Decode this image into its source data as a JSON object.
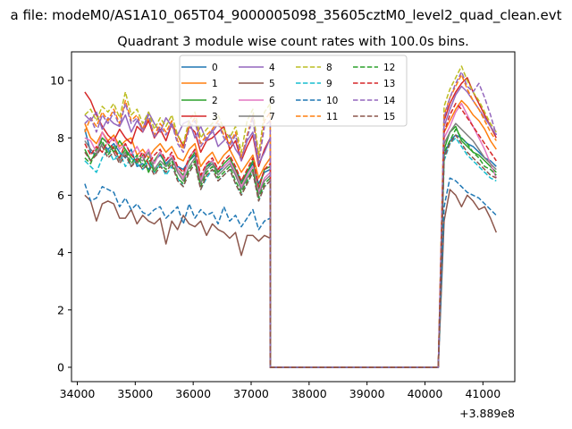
{
  "chart_data": {
    "type": "line",
    "suptitle": "a file: modeM0/AS1A10_065T04_9000005098_35605cztM0_level2_quad_clean.evt",
    "title": "Quadrant 3 module wise count rates with 100.0s bins.",
    "xlabel": "",
    "ylabel": "",
    "x_offset_label": "+3.889e8",
    "xlim": [
      33900,
      41550
    ],
    "ylim": [
      -0.5,
      11
    ],
    "x_ticks": [
      34000,
      35000,
      36000,
      37000,
      38000,
      39000,
      40000,
      41000
    ],
    "x_tick_labels": [
      "34000",
      "35000",
      "36000",
      "37000",
      "38000",
      "39000",
      "40000",
      "41000"
    ],
    "y_ticks": [
      0,
      2,
      4,
      6,
      8,
      10
    ],
    "y_tick_labels": [
      "0",
      "2",
      "4",
      "6",
      "8",
      "10"
    ],
    "legend": {
      "position": "top-center",
      "columns": 4
    },
    "segments": [
      {
        "x_start": 34130,
        "x_step": 100,
        "count": 33
      },
      {
        "x_start": 37330,
        "x_step": 100,
        "count": 30,
        "zero": true
      },
      {
        "x_start": 40230,
        "x_step": 100,
        "count": 11
      }
    ],
    "series": [
      {
        "name": "0",
        "color": "#1f77b4",
        "dashed": false,
        "seg1": [
          8.3,
          7.5,
          7.4,
          7.8,
          7.6,
          7.8,
          7.5,
          7.3,
          7.6,
          7.0,
          7.1,
          6.9,
          7.2,
          7.4,
          7.1,
          7.3,
          7.0,
          6.9,
          7.2,
          7.4,
          6.6,
          7.0,
          7.1,
          6.8,
          7.0,
          7.2,
          6.9,
          6.5,
          6.8,
          7.1,
          6.4,
          6.8,
          6.9
        ],
        "seg3": [
          0.0,
          7.4,
          7.9,
          8.1,
          8.0,
          7.8,
          7.7,
          7.5,
          7.3,
          7.2,
          7.0
        ]
      },
      {
        "name": "1",
        "color": "#ff7f0e",
        "dashed": false,
        "seg1": [
          8.5,
          8.0,
          7.8,
          8.2,
          7.9,
          8.1,
          7.7,
          7.9,
          8.0,
          7.4,
          7.6,
          7.3,
          7.6,
          7.8,
          7.5,
          7.7,
          7.3,
          7.2,
          7.6,
          7.8,
          7.0,
          7.3,
          7.5,
          7.1,
          7.4,
          7.6,
          7.2,
          6.8,
          7.1,
          7.4,
          6.6,
          7.0,
          7.3
        ],
        "seg3": [
          0.0,
          8.2,
          8.6,
          9.0,
          9.3,
          9.1,
          8.8,
          8.6,
          8.3,
          7.9,
          7.6
        ]
      },
      {
        "name": "2",
        "color": "#2ca02c",
        "dashed": false,
        "seg1": [
          7.6,
          7.2,
          7.5,
          8.0,
          7.8,
          7.5,
          7.9,
          7.6,
          7.3,
          7.1,
          7.4,
          6.8,
          7.2,
          7.5,
          7.0,
          7.3,
          6.9,
          6.7,
          7.2,
          7.5,
          6.6,
          7.0,
          7.2,
          6.8,
          7.1,
          7.3,
          6.9,
          6.4,
          6.8,
          7.2,
          6.2,
          6.9,
          7.0
        ],
        "seg3": [
          0.0,
          7.6,
          8.2,
          8.4,
          7.9,
          7.7,
          7.5,
          7.4,
          7.2,
          7.0,
          6.8
        ]
      },
      {
        "name": "3",
        "color": "#d62728",
        "dashed": false,
        "seg1": [
          9.6,
          9.3,
          8.8,
          8.4,
          8.1,
          7.9,
          8.3,
          8.0,
          7.8,
          8.4,
          8.2,
          8.6,
          8.0,
          8.3,
          7.9,
          8.5,
          8.1,
          7.7,
          8.4,
          8.2,
          7.5,
          7.9,
          8.0,
          8.2,
          8.4,
          7.6,
          7.9,
          7.2,
          7.7,
          8.1,
          7.0,
          7.6,
          8.0
        ],
        "seg3": [
          0.0,
          8.6,
          9.2,
          9.6,
          9.9,
          10.1,
          9.6,
          9.2,
          8.8,
          8.4,
          8.0
        ]
      },
      {
        "name": "4",
        "color": "#9467bd",
        "dashed": false,
        "seg1": [
          8.8,
          8.6,
          8.9,
          8.3,
          8.7,
          8.5,
          8.4,
          8.8,
          8.2,
          8.6,
          8.3,
          8.9,
          8.5,
          8.2,
          8.7,
          8.4,
          8.1,
          8.5,
          8.6,
          8.0,
          8.4,
          7.9,
          8.3,
          7.7,
          7.9,
          8.1,
          7.6,
          7.3,
          7.9,
          8.2,
          7.1,
          7.5,
          8.0
        ],
        "seg3": [
          0.0,
          8.4,
          9.0,
          9.5,
          9.8,
          9.6,
          9.3,
          9.0,
          8.7,
          8.4,
          8.1
        ]
      },
      {
        "name": "5",
        "color": "#8c564b",
        "dashed": false,
        "seg1": [
          6.0,
          5.8,
          5.1,
          5.7,
          5.8,
          5.7,
          5.2,
          5.2,
          5.5,
          5.0,
          5.3,
          5.1,
          5.0,
          5.2,
          4.3,
          5.1,
          4.8,
          5.3,
          5.0,
          4.9,
          5.1,
          4.6,
          5.0,
          4.8,
          4.7,
          4.5,
          4.7,
          3.9,
          4.6,
          4.6,
          4.4,
          4.6,
          4.5
        ],
        "seg3": [
          0.0,
          5.1,
          6.2,
          6.0,
          5.6,
          6.0,
          5.8,
          5.5,
          5.6,
          5.2,
          4.7
        ]
      },
      {
        "name": "6",
        "color": "#e377c2",
        "dashed": false,
        "seg1": [
          8.0,
          7.9,
          7.5,
          8.2,
          7.8,
          8.0,
          7.6,
          7.8,
          7.4,
          7.7,
          7.3,
          7.6,
          7.1,
          7.5,
          7.2,
          7.4,
          6.9,
          6.6,
          7.3,
          7.6,
          6.5,
          7.1,
          7.2,
          6.9,
          7.0,
          7.2,
          6.8,
          6.3,
          6.7,
          7.0,
          6.1,
          6.6,
          6.8
        ],
        "seg3": [
          0.0,
          8.0,
          8.4,
          8.9,
          9.2,
          8.8,
          8.4,
          8.0,
          7.6,
          7.1,
          6.6
        ]
      },
      {
        "name": "7",
        "color": "#7f7f7f",
        "dashed": false,
        "seg1": [
          7.9,
          7.6,
          7.4,
          7.8,
          7.5,
          7.7,
          7.2,
          7.5,
          7.0,
          7.3,
          7.2,
          7.5,
          6.9,
          7.2,
          7.0,
          7.3,
          6.8,
          6.5,
          7.0,
          7.3,
          6.4,
          6.9,
          7.1,
          6.7,
          6.9,
          7.1,
          6.7,
          6.2,
          6.6,
          6.9,
          6.0,
          6.5,
          6.7
        ],
        "seg3": [
          0.0,
          7.8,
          8.2,
          8.5,
          8.3,
          8.1,
          7.9,
          7.6,
          7.3,
          7.1,
          6.9
        ]
      },
      {
        "name": "8",
        "color": "#bcbd22",
        "dashed": true,
        "seg1": [
          8.8,
          9.0,
          8.6,
          9.1,
          8.9,
          9.2,
          8.7,
          9.6,
          8.8,
          9.0,
          8.5,
          8.9,
          8.3,
          8.7,
          8.4,
          8.8,
          8.1,
          7.8,
          8.6,
          8.9,
          8.0,
          8.3,
          8.5,
          8.8,
          8.3,
          8.0,
          8.4,
          7.5,
          8.6,
          9.0,
          7.4,
          8.9,
          9.2
        ],
        "seg3": [
          0.0,
          9.1,
          9.7,
          10.1,
          10.5,
          10.0,
          9.6,
          9.3,
          8.9,
          8.5,
          8.2
        ]
      },
      {
        "name": "9",
        "color": "#17becf",
        "dashed": true,
        "seg1": [
          7.2,
          7.0,
          6.8,
          7.3,
          7.6,
          7.2,
          7.5,
          7.0,
          7.3,
          7.1,
          6.9,
          7.2,
          6.8,
          7.1,
          6.7,
          7.0,
          6.6,
          6.3,
          6.8,
          7.1,
          6.2,
          6.6,
          6.9,
          6.5,
          6.7,
          6.9,
          6.4,
          6.0,
          6.4,
          6.8,
          5.8,
          6.3,
          6.5
        ],
        "seg3": [
          0.0,
          7.2,
          7.8,
          8.0,
          7.7,
          7.4,
          7.2,
          7.0,
          6.8,
          6.6,
          6.5
        ]
      },
      {
        "name": "10",
        "color": "#1f77b4",
        "dashed": true,
        "seg1": [
          6.4,
          5.8,
          5.9,
          6.3,
          6.2,
          6.1,
          5.6,
          5.9,
          5.5,
          5.7,
          5.4,
          5.3,
          5.5,
          5.6,
          5.2,
          5.4,
          5.6,
          5.0,
          5.7,
          5.2,
          5.5,
          5.3,
          5.4,
          5.0,
          5.6,
          5.1,
          5.3,
          4.9,
          5.2,
          5.5,
          4.8,
          5.1,
          5.2
        ],
        "seg3": [
          0.0,
          5.6,
          6.6,
          6.5,
          6.3,
          6.1,
          6.0,
          5.9,
          5.7,
          5.5,
          5.3
        ]
      },
      {
        "name": "11",
        "color": "#ff7f0e",
        "dashed": true,
        "seg1": [
          8.2,
          8.7,
          8.4,
          8.9,
          8.6,
          9.0,
          8.5,
          9.3,
          8.6,
          8.8,
          8.3,
          8.7,
          8.1,
          8.5,
          8.2,
          8.6,
          7.9,
          7.6,
          8.4,
          8.7,
          7.8,
          8.1,
          8.3,
          8.6,
          8.1,
          7.8,
          8.2,
          7.3,
          8.1,
          8.8,
          7.2,
          8.6,
          8.9
        ],
        "seg3": [
          0.0,
          8.8,
          9.4,
          9.8,
          10.2,
          9.7,
          9.3,
          9.0,
          8.6,
          8.2,
          7.9
        ]
      },
      {
        "name": "12",
        "color": "#2ca02c",
        "dashed": true,
        "seg1": [
          7.3,
          7.1,
          7.6,
          7.9,
          7.4,
          7.7,
          7.3,
          7.6,
          7.1,
          7.4,
          7.0,
          7.3,
          6.8,
          7.1,
          6.9,
          7.2,
          6.6,
          6.4,
          6.9,
          7.2,
          6.3,
          6.8,
          7.0,
          6.6,
          6.8,
          7.0,
          6.5,
          6.1,
          6.5,
          6.9,
          5.9,
          6.4,
          6.6
        ],
        "seg3": [
          0.0,
          7.5,
          7.9,
          8.3,
          8.0,
          7.8,
          7.5,
          7.3,
          7.0,
          6.9,
          6.7
        ]
      },
      {
        "name": "13",
        "color": "#d62728",
        "dashed": true,
        "seg1": [
          7.8,
          7.4,
          7.7,
          7.5,
          7.9,
          7.6,
          7.3,
          7.8,
          7.4,
          7.2,
          7.5,
          7.1,
          7.4,
          7.6,
          7.2,
          7.5,
          7.0,
          6.8,
          7.3,
          7.6,
          6.7,
          7.1,
          7.3,
          6.9,
          7.2,
          7.4,
          7.0,
          6.5,
          6.9,
          7.3,
          6.3,
          6.9,
          7.1
        ],
        "seg3": [
          0.0,
          8.2,
          8.8,
          9.2,
          9.0,
          8.7,
          8.4,
          8.1,
          7.8,
          7.5,
          7.2
        ]
      },
      {
        "name": "14",
        "color": "#9467bd",
        "dashed": true,
        "seg1": [
          8.5,
          8.7,
          8.2,
          8.8,
          8.5,
          8.9,
          8.4,
          9.2,
          8.5,
          8.7,
          8.2,
          8.8,
          8.0,
          8.4,
          8.1,
          8.5,
          7.8,
          7.5,
          8.3,
          8.6,
          7.7,
          8.0,
          8.2,
          8.5,
          8.0,
          7.7,
          8.1,
          7.2,
          8.0,
          8.7,
          7.1,
          8.4,
          8.6
        ],
        "seg3": [
          0.0,
          8.7,
          9.4,
          9.9,
          10.3,
          9.8,
          9.6,
          9.9,
          9.4,
          8.8,
          8.1
        ]
      },
      {
        "name": "15",
        "color": "#8c564b",
        "dashed": true,
        "seg1": [
          7.5,
          7.2,
          7.4,
          7.7,
          7.3,
          7.5,
          7.1,
          7.4,
          7.0,
          7.2,
          6.9,
          7.1,
          6.7,
          7.0,
          6.8,
          7.1,
          6.5,
          6.3,
          6.8,
          7.1,
          6.2,
          6.7,
          6.9,
          6.5,
          6.7,
          6.9,
          6.4,
          6.0,
          6.4,
          6.8,
          5.8,
          6.3,
          6.5
        ],
        "seg3": [
          0.0,
          7.3,
          7.8,
          8.1,
          7.8,
          7.5,
          7.3,
          7.1,
          6.9,
          6.7,
          6.6
        ]
      }
    ]
  }
}
